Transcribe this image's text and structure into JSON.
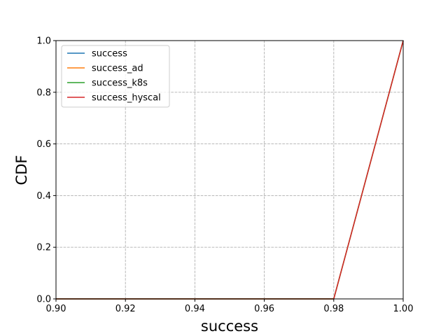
{
  "chart_data": {
    "type": "line",
    "title": "",
    "xlabel": "success",
    "ylabel": "CDF",
    "xlim": [
      0.9,
      1.0
    ],
    "ylim": [
      0.0,
      1.0
    ],
    "xticks": [
      "0.90",
      "0.92",
      "0.94",
      "0.96",
      "0.98",
      "1.00"
    ],
    "yticks": [
      "0.0",
      "0.2",
      "0.4",
      "0.6",
      "0.8",
      "1.0"
    ],
    "grid": true,
    "grid_style": "dashed",
    "legend_position": "upper-left",
    "series": [
      {
        "name": "success",
        "color": "#1f77b4",
        "x": [
          0.9,
          0.98,
          1.0
        ],
        "y": [
          0.0,
          0.0,
          1.0
        ]
      },
      {
        "name": "success_ad",
        "color": "#ff7f0e",
        "x": [
          0.9,
          0.98,
          1.0
        ],
        "y": [
          0.0,
          0.0,
          1.0
        ]
      },
      {
        "name": "success_k8s",
        "color": "#2ca02c",
        "x": [
          0.9,
          0.98,
          1.0
        ],
        "y": [
          0.0,
          0.0,
          1.0
        ]
      },
      {
        "name": "success_hyscal",
        "color": "#d62728",
        "x": [
          0.9,
          0.98,
          1.0
        ],
        "y": [
          0.0,
          0.0,
          1.0
        ]
      }
    ]
  }
}
